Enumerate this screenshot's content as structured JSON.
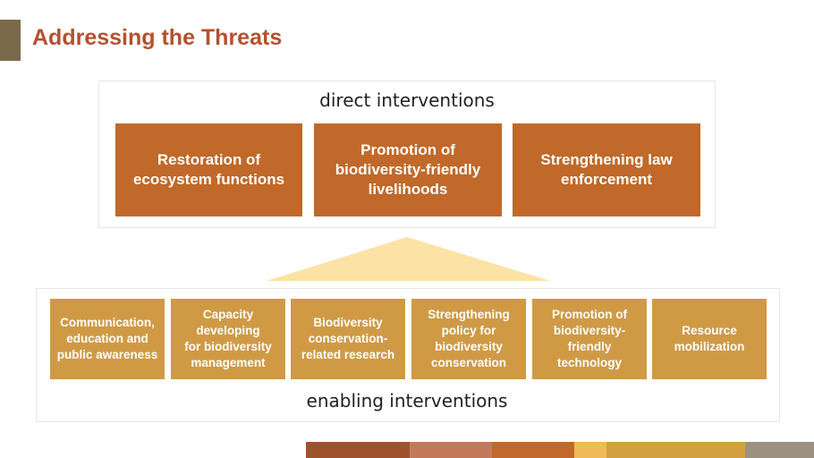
{
  "title": "Addressing the Threats",
  "direct": {
    "label": "direct interventions",
    "items": [
      "Restoration of\necosystem functions",
      "Promotion of\nbiodiversity-friendly\nlivelihoods",
      "Strengthening law\nenforcement"
    ]
  },
  "enabling": {
    "label": "enabling interventions",
    "items": [
      "Communication,\neducation and\npublic awareness",
      "Capacity\ndeveloping\nfor biodiversity\nmanagement",
      "Biodiversity\nconservation-\nrelated research",
      "Strengthening\npolicy for\nbiodiversity\nconservation",
      "Promotion of\nbiodiversity-\nfriendly\ntechnology",
      "Resource\nmobilization"
    ]
  },
  "colors": {
    "title": "#b5502e",
    "direct_box": "#c0692a",
    "enabling_box": "#d09a45",
    "triangle": "#fde2a6",
    "footer": [
      "#a0522d",
      "#c47a5a",
      "#c0692a",
      "#f0b95a",
      "#d2a040",
      "#9c9180"
    ]
  }
}
